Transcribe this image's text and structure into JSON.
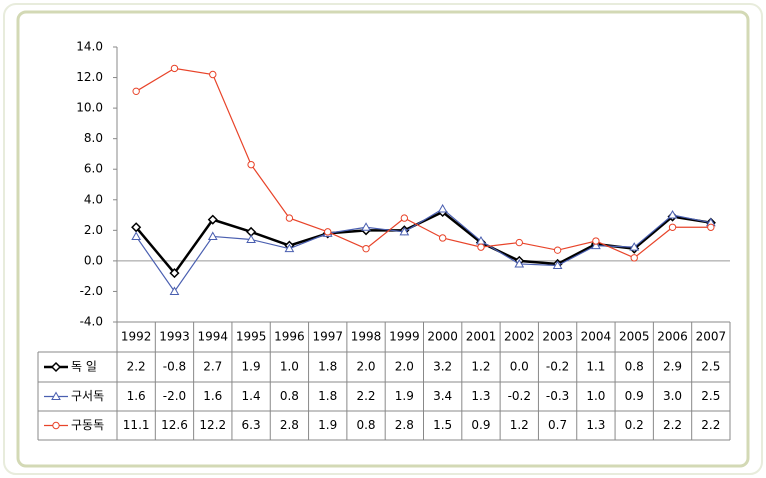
{
  "chart_data": {
    "type": "line",
    "categories": [
      "1992",
      "1993",
      "1994",
      "1995",
      "1996",
      "1997",
      "1998",
      "1999",
      "2000",
      "2001",
      "2002",
      "2003",
      "2004",
      "2005",
      "2006",
      "2007"
    ],
    "series": [
      {
        "name": "독 일",
        "color": "#000000",
        "marker": "diamond",
        "values": [
          2.2,
          -0.8,
          2.7,
          1.9,
          1.0,
          1.8,
          2.0,
          2.0,
          3.2,
          1.2,
          0.0,
          -0.2,
          1.1,
          0.8,
          2.9,
          2.5
        ],
        "value_labels": [
          "2.2",
          "-0.8",
          "2.7",
          "1.9",
          "1.0",
          "1.8",
          "2.0",
          "2.0",
          "3.2",
          "1.2",
          "0.0",
          "-0.2",
          "1.1",
          "0.8",
          "2.9",
          "2.5"
        ]
      },
      {
        "name": "구서독",
        "color": "#4a5fb0",
        "marker": "triangle",
        "values": [
          1.6,
          -2.0,
          1.6,
          1.4,
          0.8,
          1.8,
          2.2,
          1.9,
          3.4,
          1.3,
          -0.2,
          -0.3,
          1.0,
          0.9,
          3.0,
          2.5
        ],
        "value_labels": [
          "1.6",
          "-2.0",
          "1.6",
          "1.4",
          "0.8",
          "1.8",
          "2.2",
          "1.9",
          "3.4",
          "1.3",
          "-0.2",
          "-0.3",
          "1.0",
          "0.9",
          "3.0",
          "2.5"
        ]
      },
      {
        "name": "구동독",
        "color": "#e8442a",
        "marker": "circle",
        "values": [
          11.1,
          12.6,
          12.2,
          6.3,
          2.8,
          1.9,
          0.8,
          2.8,
          1.5,
          0.9,
          1.2,
          0.7,
          1.3,
          0.2,
          2.2,
          2.2
        ],
        "value_labels": [
          "11.1",
          "12.6",
          "12.2",
          "6.3",
          "2.8",
          "1.9",
          "0.8",
          "2.8",
          "1.5",
          "0.9",
          "1.2",
          "0.7",
          "1.3",
          "0.2",
          "2.2",
          "2.2"
        ]
      }
    ],
    "ylim": [
      -4,
      14
    ],
    "yticks": [
      {
        "value": -4,
        "label": "-4.0"
      },
      {
        "value": -2,
        "label": "-2.0"
      },
      {
        "value": 0,
        "label": "0.0"
      },
      {
        "value": 2,
        "label": "2.0"
      },
      {
        "value": 4,
        "label": "4.0"
      },
      {
        "value": 6,
        "label": "6.0"
      },
      {
        "value": 8,
        "label": "8.0"
      },
      {
        "value": 10,
        "label": "10.0"
      },
      {
        "value": 12,
        "label": "12.0"
      },
      {
        "value": 14,
        "label": "14.0"
      }
    ]
  }
}
